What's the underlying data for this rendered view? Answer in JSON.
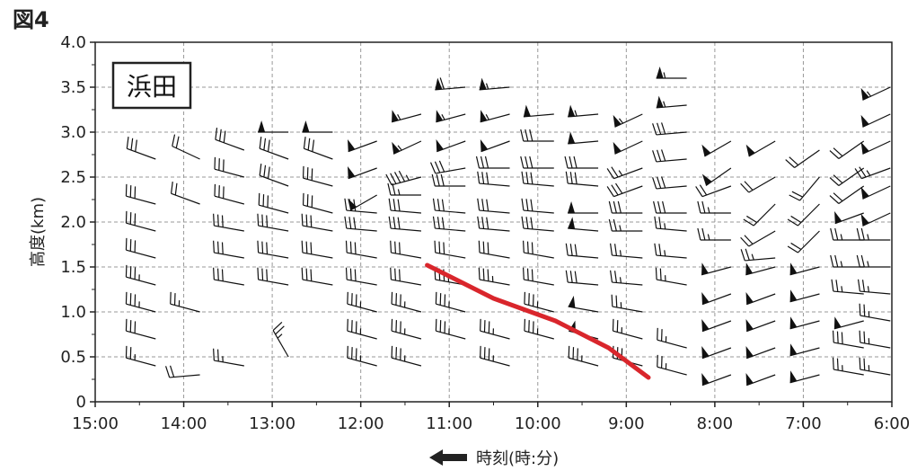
{
  "figure_label": "図4",
  "station": "浜田",
  "chart_data": {
    "type": "wind_barb_time_height",
    "ylabel": "高度(km)",
    "xlabel": "時刻(時:分)",
    "xlabel_arrow": "left",
    "x_reversed": true,
    "xlim_hours": [
      6,
      15
    ],
    "ylim_km": [
      0,
      4
    ],
    "x_ticks": [
      {
        "h": 15,
        "label": "15:00"
      },
      {
        "h": 14,
        "label": "14:00"
      },
      {
        "h": 13,
        "label": "13:00"
      },
      {
        "h": 12,
        "label": "12:00"
      },
      {
        "h": 11,
        "label": "11:00"
      },
      {
        "h": 10,
        "label": "10:00"
      },
      {
        "h": 9,
        "label": "9:00"
      },
      {
        "h": 8,
        "label": "8:00"
      },
      {
        "h": 7,
        "label": "7:00"
      },
      {
        "h": 6,
        "label": "6:00"
      }
    ],
    "y_ticks": [
      {
        "v": 4.0,
        "label": "4.0"
      },
      {
        "v": 3.5,
        "label": "3.5"
      },
      {
        "v": 3.0,
        "label": "3.0"
      },
      {
        "v": 2.5,
        "label": "2.5"
      },
      {
        "v": 2.0,
        "label": "2.0"
      },
      {
        "v": 1.5,
        "label": "1.5"
      },
      {
        "v": 1.0,
        "label": "1.0"
      },
      {
        "v": 0.5,
        "label": "0.5"
      },
      {
        "v": 0,
        "label": "0"
      }
    ],
    "grid": "dashed",
    "series": [
      {
        "time_h": 14.5,
        "barbs": [
          {
            "alt": 0.4,
            "speed": 25,
            "dir": 285
          },
          {
            "alt": 0.7,
            "speed": 30,
            "dir": 285
          },
          {
            "alt": 1.0,
            "speed": 35,
            "dir": 285
          },
          {
            "alt": 1.3,
            "speed": 35,
            "dir": 285
          },
          {
            "alt": 1.6,
            "speed": 30,
            "dir": 285
          },
          {
            "alt": 1.9,
            "speed": 30,
            "dir": 285
          },
          {
            "alt": 2.2,
            "speed": 30,
            "dir": 285
          },
          {
            "alt": 2.7,
            "speed": 30,
            "dir": 290
          }
        ]
      },
      {
        "time_h": 14.0,
        "barbs": [
          {
            "alt": 0.3,
            "speed": 20,
            "dir": 265
          },
          {
            "alt": 1.0,
            "speed": 25,
            "dir": 285
          },
          {
            "alt": 2.2,
            "speed": 20,
            "dir": 290
          },
          {
            "alt": 2.7,
            "speed": 20,
            "dir": 295
          }
        ]
      },
      {
        "time_h": 13.5,
        "barbs": [
          {
            "alt": 0.4,
            "speed": 25,
            "dir": 280
          },
          {
            "alt": 1.3,
            "speed": 30,
            "dir": 280
          },
          {
            "alt": 1.6,
            "speed": 30,
            "dir": 280
          },
          {
            "alt": 1.9,
            "speed": 30,
            "dir": 280
          },
          {
            "alt": 2.2,
            "speed": 30,
            "dir": 285
          },
          {
            "alt": 2.5,
            "speed": 30,
            "dir": 285
          },
          {
            "alt": 2.8,
            "speed": 30,
            "dir": 290
          }
        ]
      },
      {
        "time_h": 13.0,
        "barbs": [
          {
            "alt": 0.5,
            "speed": 25,
            "dir": 330
          },
          {
            "alt": 1.3,
            "speed": 30,
            "dir": 280
          },
          {
            "alt": 1.6,
            "speed": 30,
            "dir": 280
          },
          {
            "alt": 1.9,
            "speed": 30,
            "dir": 280
          },
          {
            "alt": 2.1,
            "speed": 30,
            "dir": 285
          },
          {
            "alt": 2.4,
            "speed": 30,
            "dir": 290
          },
          {
            "alt": 2.7,
            "speed": 30,
            "dir": 290
          },
          {
            "alt": 3.0,
            "speed": 50,
            "dir": 270
          }
        ]
      },
      {
        "time_h": 12.5,
        "barbs": [
          {
            "alt": 1.3,
            "speed": 30,
            "dir": 280
          },
          {
            "alt": 1.6,
            "speed": 30,
            "dir": 280
          },
          {
            "alt": 1.9,
            "speed": 30,
            "dir": 280
          },
          {
            "alt": 2.1,
            "speed": 30,
            "dir": 285
          },
          {
            "alt": 2.4,
            "speed": 30,
            "dir": 285
          },
          {
            "alt": 2.7,
            "speed": 30,
            "dir": 290
          },
          {
            "alt": 3.0,
            "speed": 50,
            "dir": 270
          }
        ]
      },
      {
        "time_h": 12.0,
        "barbs": [
          {
            "alt": 0.4,
            "speed": 35,
            "dir": 285
          },
          {
            "alt": 0.7,
            "speed": 35,
            "dir": 285
          },
          {
            "alt": 1.0,
            "speed": 35,
            "dir": 285
          },
          {
            "alt": 1.3,
            "speed": 30,
            "dir": 280
          },
          {
            "alt": 1.6,
            "speed": 30,
            "dir": 280
          },
          {
            "alt": 1.9,
            "speed": 30,
            "dir": 275
          },
          {
            "alt": 2.1,
            "speed": 30,
            "dir": 275
          },
          {
            "alt": 2.3,
            "speed": 50,
            "dir": 240
          },
          {
            "alt": 2.6,
            "speed": 50,
            "dir": 250
          },
          {
            "alt": 2.9,
            "speed": 50,
            "dir": 250
          }
        ]
      },
      {
        "time_h": 11.5,
        "barbs": [
          {
            "alt": 0.4,
            "speed": 35,
            "dir": 285
          },
          {
            "alt": 0.7,
            "speed": 35,
            "dir": 285
          },
          {
            "alt": 1.0,
            "speed": 35,
            "dir": 285
          },
          {
            "alt": 1.3,
            "speed": 30,
            "dir": 280
          },
          {
            "alt": 1.6,
            "speed": 30,
            "dir": 280
          },
          {
            "alt": 1.9,
            "speed": 30,
            "dir": 275
          },
          {
            "alt": 2.1,
            "speed": 30,
            "dir": 275
          },
          {
            "alt": 2.3,
            "speed": 25,
            "dir": 270
          },
          {
            "alt": 2.5,
            "speed": 45,
            "dir": 255
          },
          {
            "alt": 2.9,
            "speed": 55,
            "dir": 245
          },
          {
            "alt": 3.2,
            "speed": 55,
            "dir": 255
          }
        ]
      },
      {
        "time_h": 11.0,
        "barbs": [
          {
            "alt": 0.7,
            "speed": 35,
            "dir": 285
          },
          {
            "alt": 1.0,
            "speed": 35,
            "dir": 285
          },
          {
            "alt": 1.3,
            "speed": 35,
            "dir": 280
          },
          {
            "alt": 1.6,
            "speed": 30,
            "dir": 280
          },
          {
            "alt": 1.9,
            "speed": 30,
            "dir": 275
          },
          {
            "alt": 2.1,
            "speed": 30,
            "dir": 275
          },
          {
            "alt": 2.4,
            "speed": 30,
            "dir": 270
          },
          {
            "alt": 2.6,
            "speed": 30,
            "dir": 260
          },
          {
            "alt": 2.9,
            "speed": 50,
            "dir": 250
          },
          {
            "alt": 3.2,
            "speed": 55,
            "dir": 255
          },
          {
            "alt": 3.5,
            "speed": 60,
            "dir": 265
          }
        ]
      },
      {
        "time_h": 10.5,
        "barbs": [
          {
            "alt": 0.4,
            "speed": 35,
            "dir": 285
          },
          {
            "alt": 0.7,
            "speed": 35,
            "dir": 285
          },
          {
            "alt": 1.3,
            "speed": 35,
            "dir": 280
          },
          {
            "alt": 1.6,
            "speed": 30,
            "dir": 280
          },
          {
            "alt": 1.9,
            "speed": 30,
            "dir": 275
          },
          {
            "alt": 2.1,
            "speed": 30,
            "dir": 275
          },
          {
            "alt": 2.4,
            "speed": 30,
            "dir": 275
          },
          {
            "alt": 2.6,
            "speed": 30,
            "dir": 270
          },
          {
            "alt": 2.9,
            "speed": 50,
            "dir": 250
          },
          {
            "alt": 3.2,
            "speed": 55,
            "dir": 255
          },
          {
            "alt": 3.5,
            "speed": 55,
            "dir": 265
          }
        ]
      },
      {
        "time_h": 10.0,
        "barbs": [
          {
            "alt": 0.7,
            "speed": 35,
            "dir": 285
          },
          {
            "alt": 1.0,
            "speed": 35,
            "dir": 285
          },
          {
            "alt": 1.3,
            "speed": 30,
            "dir": 280
          },
          {
            "alt": 1.6,
            "speed": 30,
            "dir": 280
          },
          {
            "alt": 1.9,
            "speed": 30,
            "dir": 275
          },
          {
            "alt": 2.1,
            "speed": 30,
            "dir": 275
          },
          {
            "alt": 2.4,
            "speed": 30,
            "dir": 275
          },
          {
            "alt": 2.6,
            "speed": 30,
            "dir": 270
          },
          {
            "alt": 2.9,
            "speed": 30,
            "dir": 270
          },
          {
            "alt": 3.2,
            "speed": 50,
            "dir": 265
          }
        ]
      },
      {
        "time_h": 9.5,
        "barbs": [
          {
            "alt": 0.4,
            "speed": 35,
            "dir": 285
          },
          {
            "alt": 0.7,
            "speed": 50,
            "dir": 285
          },
          {
            "alt": 1.0,
            "speed": 50,
            "dir": 280
          },
          {
            "alt": 1.3,
            "speed": 30,
            "dir": 275
          },
          {
            "alt": 1.6,
            "speed": 30,
            "dir": 275
          },
          {
            "alt": 1.9,
            "speed": 50,
            "dir": 275
          },
          {
            "alt": 2.1,
            "speed": 50,
            "dir": 270
          },
          {
            "alt": 2.4,
            "speed": 30,
            "dir": 275
          },
          {
            "alt": 2.6,
            "speed": 30,
            "dir": 270
          },
          {
            "alt": 2.9,
            "speed": 50,
            "dir": 265
          },
          {
            "alt": 3.2,
            "speed": 55,
            "dir": 265
          }
        ]
      },
      {
        "time_h": 9.0,
        "barbs": [
          {
            "alt": 0.4,
            "speed": 30,
            "dir": 285
          },
          {
            "alt": 0.7,
            "speed": 25,
            "dir": 285
          },
          {
            "alt": 1.0,
            "speed": 25,
            "dir": 280
          },
          {
            "alt": 1.3,
            "speed": 25,
            "dir": 275
          },
          {
            "alt": 1.6,
            "speed": 25,
            "dir": 275
          },
          {
            "alt": 1.9,
            "speed": 25,
            "dir": 270
          },
          {
            "alt": 2.1,
            "speed": 30,
            "dir": 270
          },
          {
            "alt": 2.4,
            "speed": 30,
            "dir": 250
          },
          {
            "alt": 2.6,
            "speed": 25,
            "dir": 250
          },
          {
            "alt": 2.9,
            "speed": 50,
            "dir": 245
          },
          {
            "alt": 3.2,
            "speed": 55,
            "dir": 245
          }
        ]
      },
      {
        "time_h": 8.5,
        "barbs": [
          {
            "alt": 0.3,
            "speed": 25,
            "dir": 285
          },
          {
            "alt": 0.6,
            "speed": 25,
            "dir": 285
          },
          {
            "alt": 1.3,
            "speed": 25,
            "dir": 280
          },
          {
            "alt": 1.6,
            "speed": 25,
            "dir": 275
          },
          {
            "alt": 1.9,
            "speed": 25,
            "dir": 275
          },
          {
            "alt": 2.1,
            "speed": 30,
            "dir": 270
          },
          {
            "alt": 2.4,
            "speed": 30,
            "dir": 265
          },
          {
            "alt": 2.7,
            "speed": 30,
            "dir": 265
          },
          {
            "alt": 3.0,
            "speed": 30,
            "dir": 265
          },
          {
            "alt": 3.3,
            "speed": 55,
            "dir": 265
          },
          {
            "alt": 3.6,
            "speed": 55,
            "dir": 270
          }
        ]
      },
      {
        "time_h": 8.0,
        "barbs": [
          {
            "alt": 0.3,
            "speed": 50,
            "dir": 250
          },
          {
            "alt": 0.6,
            "speed": 50,
            "dir": 250
          },
          {
            "alt": 0.9,
            "speed": 50,
            "dir": 250
          },
          {
            "alt": 1.2,
            "speed": 50,
            "dir": 250
          },
          {
            "alt": 1.5,
            "speed": 50,
            "dir": 255
          },
          {
            "alt": 1.8,
            "speed": 25,
            "dir": 270
          },
          {
            "alt": 2.1,
            "speed": 25,
            "dir": 270
          },
          {
            "alt": 2.4,
            "speed": 20,
            "dir": 250
          },
          {
            "alt": 2.6,
            "speed": 50,
            "dir": 235
          },
          {
            "alt": 2.9,
            "speed": 50,
            "dir": 240
          }
        ]
      },
      {
        "time_h": 7.5,
        "barbs": [
          {
            "alt": 0.3,
            "speed": 50,
            "dir": 250
          },
          {
            "alt": 0.6,
            "speed": 50,
            "dir": 250
          },
          {
            "alt": 0.9,
            "speed": 50,
            "dir": 250
          },
          {
            "alt": 1.2,
            "speed": 50,
            "dir": 250
          },
          {
            "alt": 1.5,
            "speed": 50,
            "dir": 255
          },
          {
            "alt": 1.6,
            "speed": 25,
            "dir": 265
          },
          {
            "alt": 1.9,
            "speed": 20,
            "dir": 240
          },
          {
            "alt": 2.2,
            "speed": 20,
            "dir": 225
          },
          {
            "alt": 2.5,
            "speed": 20,
            "dir": 240
          },
          {
            "alt": 2.9,
            "speed": 50,
            "dir": 240
          }
        ]
      },
      {
        "time_h": 7.0,
        "barbs": [
          {
            "alt": 0.3,
            "speed": 50,
            "dir": 255
          },
          {
            "alt": 0.6,
            "speed": 50,
            "dir": 255
          },
          {
            "alt": 0.9,
            "speed": 50,
            "dir": 255
          },
          {
            "alt": 1.2,
            "speed": 50,
            "dir": 255
          },
          {
            "alt": 1.5,
            "speed": 50,
            "dir": 255
          },
          {
            "alt": 1.9,
            "speed": 20,
            "dir": 225
          },
          {
            "alt": 2.2,
            "speed": 20,
            "dir": 225
          },
          {
            "alt": 2.5,
            "speed": 20,
            "dir": 220
          },
          {
            "alt": 2.8,
            "speed": 20,
            "dir": 235
          }
        ]
      },
      {
        "time_h": 6.5,
        "barbs": [
          {
            "alt": 0.3,
            "speed": 25,
            "dir": 280
          },
          {
            "alt": 0.6,
            "speed": 30,
            "dir": 280
          },
          {
            "alt": 0.9,
            "speed": 50,
            "dir": 255
          },
          {
            "alt": 1.2,
            "speed": 25,
            "dir": 275
          },
          {
            "alt": 1.5,
            "speed": 25,
            "dir": 270
          },
          {
            "alt": 1.8,
            "speed": 25,
            "dir": 270
          },
          {
            "alt": 2.1,
            "speed": 50,
            "dir": 250
          },
          {
            "alt": 2.4,
            "speed": 20,
            "dir": 235
          },
          {
            "alt": 2.6,
            "speed": 20,
            "dir": 235
          },
          {
            "alt": 2.9,
            "speed": 20,
            "dir": 235
          }
        ]
      },
      {
        "time_h": 6.2,
        "barbs": [
          {
            "alt": 0.3,
            "speed": 25,
            "dir": 280
          },
          {
            "alt": 0.6,
            "speed": 25,
            "dir": 280
          },
          {
            "alt": 0.9,
            "speed": 25,
            "dir": 280
          },
          {
            "alt": 1.2,
            "speed": 25,
            "dir": 275
          },
          {
            "alt": 1.5,
            "speed": 25,
            "dir": 270
          },
          {
            "alt": 1.8,
            "speed": 25,
            "dir": 270
          },
          {
            "alt": 2.1,
            "speed": 50,
            "dir": 245
          },
          {
            "alt": 2.4,
            "speed": 50,
            "dir": 245
          },
          {
            "alt": 2.6,
            "speed": 25,
            "dir": 250
          },
          {
            "alt": 2.9,
            "speed": 50,
            "dir": 245
          },
          {
            "alt": 3.2,
            "speed": 50,
            "dir": 245
          },
          {
            "alt": 3.5,
            "speed": 55,
            "dir": 245
          }
        ]
      }
    ],
    "trend_line": {
      "color": "#d9262c",
      "points": [
        [
          11.25,
          1.52
        ],
        [
          10.5,
          1.15
        ],
        [
          9.8,
          0.9
        ],
        [
          9.2,
          0.6
        ],
        [
          8.75,
          0.27
        ]
      ]
    }
  }
}
